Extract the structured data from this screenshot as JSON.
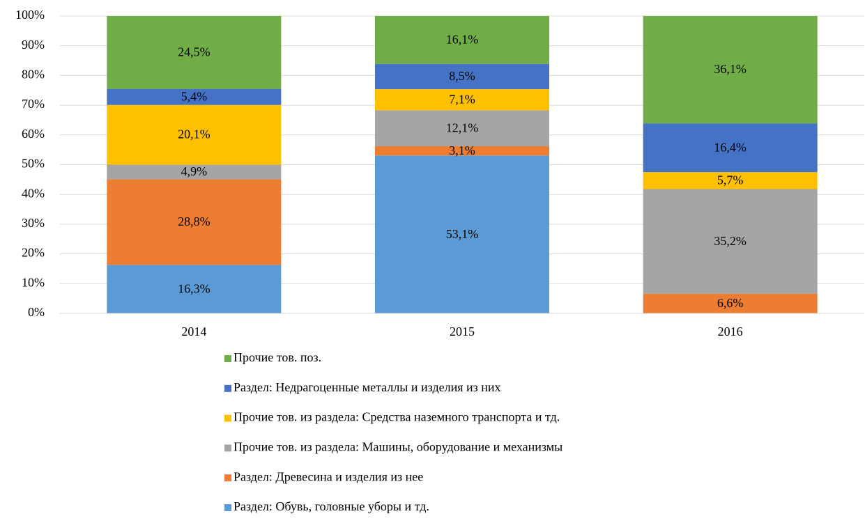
{
  "chart_data": {
    "type": "stacked_bar",
    "categories": [
      "2014",
      "2015",
      "2016"
    ],
    "ylim": [
      0,
      100
    ],
    "yticks": [
      {
        "value": 0,
        "label": "0%"
      },
      {
        "value": 10,
        "label": "10%"
      },
      {
        "value": 20,
        "label": "20%"
      },
      {
        "value": 30,
        "label": "30%"
      },
      {
        "value": 40,
        "label": "40%"
      },
      {
        "value": 50,
        "label": "50%"
      },
      {
        "value": 60,
        "label": "60%"
      },
      {
        "value": 70,
        "label": "70%"
      },
      {
        "value": 80,
        "label": "80%"
      },
      {
        "value": 90,
        "label": "90%"
      },
      {
        "value": 100,
        "label": "100%"
      }
    ],
    "grid": true,
    "series": [
      {
        "name": "Раздел: Обувь, головные уборы и тд.",
        "color": "#5b9bd5",
        "values": [
          16.3,
          53.1,
          null
        ],
        "value_labels": [
          "16,3%",
          "53,1%",
          null
        ]
      },
      {
        "name": "Раздел: Древесина и изделия из нее",
        "color": "#ed7d31",
        "values": [
          28.8,
          3.1,
          6.6
        ],
        "value_labels": [
          "28,8%",
          "3,1%",
          "6,6%"
        ]
      },
      {
        "name": "Прочие тов. из раздела: Машины, оборудование и механизмы",
        "color": "#a5a5a5",
        "values": [
          4.9,
          12.1,
          35.2
        ],
        "value_labels": [
          "4,9%",
          "12,1%",
          "35,2%"
        ]
      },
      {
        "name": "Прочие тов. из раздела: Средства наземного транспорта и тд.",
        "color": "#ffc000",
        "values": [
          20.1,
          7.1,
          5.7
        ],
        "value_labels": [
          "20,1%",
          "7,1%",
          "5,7%"
        ]
      },
      {
        "name": "Раздел: Недрагоценные металлы и изделия из них",
        "color": "#4472c4",
        "values": [
          5.4,
          8.5,
          16.4
        ],
        "value_labels": [
          "5,4%",
          "8,5%",
          "16,4%"
        ]
      },
      {
        "name": "Прочие тов. поз.",
        "color": "#70ad47",
        "values": [
          24.5,
          16.1,
          36.1
        ],
        "value_labels": [
          "24,5%",
          "16,1%",
          "36,1%"
        ]
      }
    ]
  }
}
